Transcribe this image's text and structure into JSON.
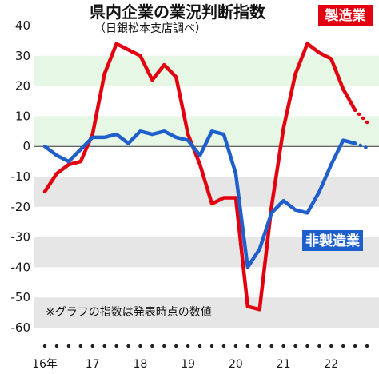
{
  "chart_data": {
    "type": "line",
    "title": "県内企業の業況判断指数",
    "subtitle": "（日銀松本支店調べ）",
    "note": "※グラフの指数は発表時点の数値",
    "ylim": [
      -60,
      40
    ],
    "yticks": [
      40,
      30,
      20,
      10,
      0,
      -10,
      -20,
      -30,
      -40,
      -50,
      -60
    ],
    "x_range": [
      2016.0,
      2023.0
    ],
    "x_tick_labels": [
      {
        "x": 2016.0,
        "label": "16年"
      },
      {
        "x": 2017.0,
        "label": "17"
      },
      {
        "x": 2018.0,
        "label": "18"
      },
      {
        "x": 2019.0,
        "label": "19"
      },
      {
        "x": 2020.0,
        "label": "20"
      },
      {
        "x": 2021.0,
        "label": "21"
      },
      {
        "x": 2022.0,
        "label": "22"
      }
    ],
    "quarter_dots_from": 2016.0,
    "quarter_dots_count": 28,
    "band_color": "#e6f7e6",
    "negative_band_color": "#e6e6e6",
    "series": [
      {
        "name": "製造業",
        "color": "#e3000f",
        "points": [
          [
            2016.0,
            -15
          ],
          [
            2016.25,
            -9
          ],
          [
            2016.5,
            -6
          ],
          [
            2016.75,
            -5
          ],
          [
            2017.0,
            4
          ],
          [
            2017.25,
            24
          ],
          [
            2017.5,
            34
          ],
          [
            2017.75,
            32
          ],
          [
            2018.0,
            30
          ],
          [
            2018.25,
            22
          ],
          [
            2018.5,
            27
          ],
          [
            2018.75,
            23
          ],
          [
            2019.0,
            4
          ],
          [
            2019.25,
            -6
          ],
          [
            2019.5,
            -19
          ],
          [
            2019.75,
            -17
          ],
          [
            2020.0,
            -17
          ],
          [
            2020.25,
            -53
          ],
          [
            2020.5,
            -54
          ],
          [
            2020.75,
            -20
          ],
          [
            2021.0,
            6
          ],
          [
            2021.25,
            24
          ],
          [
            2021.5,
            34
          ],
          [
            2021.75,
            31
          ],
          [
            2022.0,
            29
          ],
          [
            2022.25,
            19
          ],
          [
            2022.5,
            12
          ]
        ],
        "forecast": [
          [
            2022.5,
            12
          ],
          [
            2022.75,
            8
          ]
        ]
      },
      {
        "name": "非製造業",
        "color": "#1e5fcc",
        "points": [
          [
            2016.0,
            0
          ],
          [
            2016.25,
            -3
          ],
          [
            2016.5,
            -5
          ],
          [
            2016.75,
            -1
          ],
          [
            2017.0,
            3
          ],
          [
            2017.25,
            3
          ],
          [
            2017.5,
            4
          ],
          [
            2017.75,
            1
          ],
          [
            2018.0,
            5
          ],
          [
            2018.25,
            4
          ],
          [
            2018.5,
            5
          ],
          [
            2018.75,
            3
          ],
          [
            2019.0,
            2
          ],
          [
            2019.25,
            -3
          ],
          [
            2019.5,
            5
          ],
          [
            2019.75,
            4
          ],
          [
            2020.0,
            -9
          ],
          [
            2020.25,
            -40
          ],
          [
            2020.5,
            -34
          ],
          [
            2020.75,
            -22
          ],
          [
            2021.0,
            -18
          ],
          [
            2021.25,
            -21
          ],
          [
            2021.5,
            -22
          ],
          [
            2021.75,
            -15
          ],
          [
            2022.0,
            -6
          ],
          [
            2022.25,
            2
          ],
          [
            2022.5,
            1
          ]
        ],
        "forecast": [
          [
            2022.5,
            1
          ],
          [
            2022.75,
            -0.5
          ]
        ]
      }
    ],
    "legend": [
      {
        "label": "製造業",
        "color": "#e3000f"
      },
      {
        "label": "非製造業",
        "color": "#1e5fcc"
      }
    ]
  }
}
